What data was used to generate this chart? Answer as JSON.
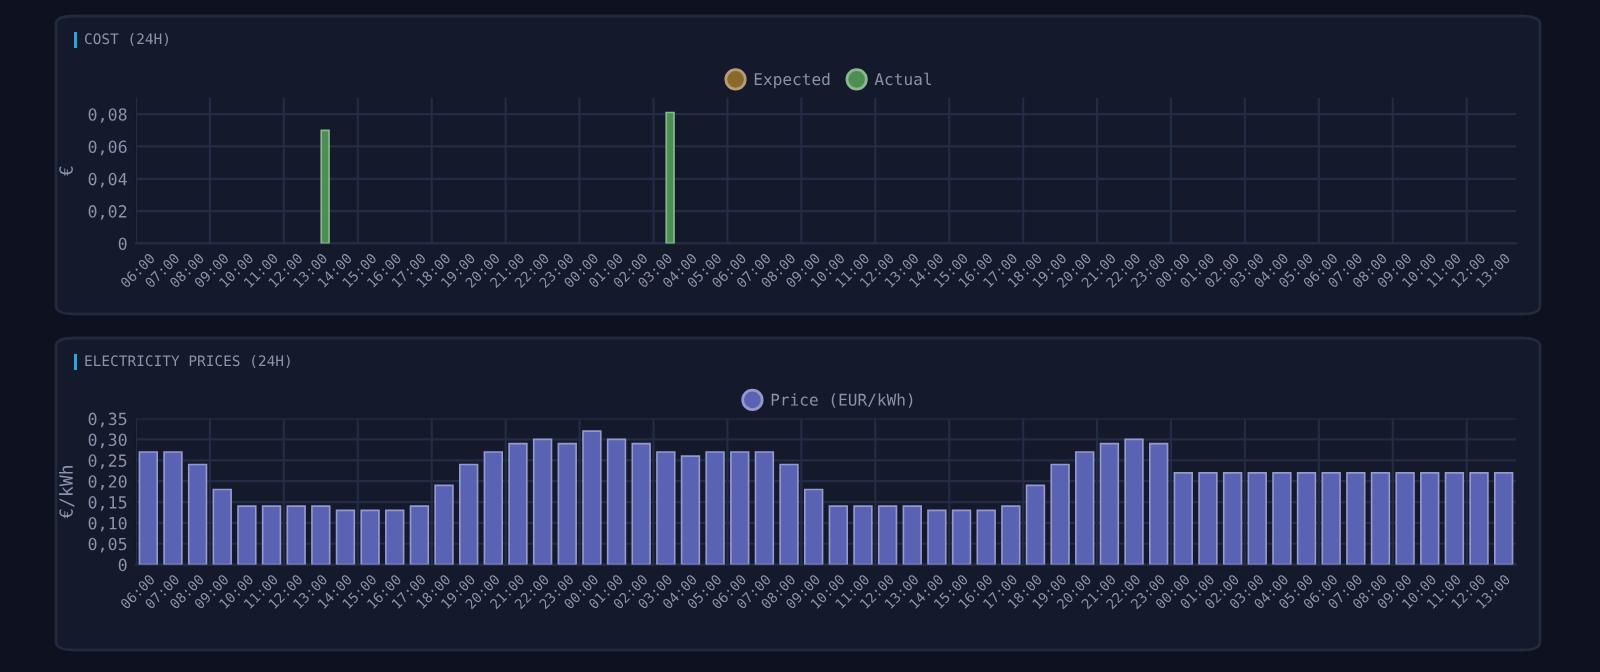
{
  "chart_data": [
    {
      "type": "bar",
      "title": "COST (24H)",
      "ylabel": "€",
      "legend": "top",
      "grid": true,
      "categories": [
        "06:00",
        "07:00",
        "08:00",
        "09:00",
        "10:00",
        "11:00",
        "12:00",
        "13:00",
        "14:00",
        "15:00",
        "16:00",
        "17:00",
        "18:00",
        "19:00",
        "20:00",
        "21:00",
        "22:00",
        "23:00",
        "00:00",
        "01:00",
        "02:00",
        "03:00",
        "04:00",
        "05:00",
        "06:00",
        "07:00",
        "08:00",
        "09:00",
        "10:00",
        "11:00",
        "12:00",
        "13:00",
        "14:00",
        "15:00",
        "16:00",
        "17:00",
        "18:00",
        "19:00",
        "20:00",
        "21:00",
        "22:00",
        "23:00",
        "00:00",
        "01:00",
        "02:00",
        "03:00",
        "04:00",
        "05:00",
        "06:00",
        "07:00",
        "08:00",
        "09:00",
        "10:00",
        "11:00",
        "12:00",
        "13:00"
      ],
      "ylim": [
        0,
        0.09
      ],
      "yticks": [
        0,
        {
          "value": 0.02,
          "label": "0,02"
        },
        {
          "value": 0.04,
          "label": "0,04"
        },
        {
          "value": 0.06,
          "label": "0,06"
        },
        {
          "value": 0.08,
          "label": "0,08"
        }
      ],
      "series": [
        {
          "name": "Expected",
          "color": "#8a6a2a",
          "values": [
            null,
            null,
            null,
            null,
            null,
            null,
            null,
            null,
            null,
            null,
            null,
            null,
            null,
            null,
            null,
            null,
            null,
            null,
            null,
            null,
            null,
            null,
            null,
            null,
            null,
            null,
            null,
            null,
            null,
            null,
            null,
            null,
            null,
            null,
            null,
            null,
            null,
            null,
            null,
            null,
            null,
            null,
            null,
            null,
            null,
            null,
            null,
            null,
            null,
            null,
            null,
            null,
            null,
            null,
            null,
            null
          ]
        },
        {
          "name": "Actual",
          "color": "#4c8f52",
          "values": [
            null,
            null,
            null,
            null,
            null,
            null,
            null,
            0.07,
            null,
            null,
            null,
            null,
            null,
            null,
            null,
            null,
            null,
            null,
            null,
            null,
            null,
            0.081,
            null,
            null,
            null,
            null,
            null,
            null,
            null,
            null,
            null,
            null,
            null,
            null,
            null,
            null,
            null,
            null,
            null,
            null,
            null,
            null,
            null,
            null,
            null,
            null,
            null,
            null,
            null,
            null,
            null,
            null,
            null,
            null,
            null,
            null
          ]
        }
      ]
    },
    {
      "type": "bar",
      "title": "ELECTRICITY PRICES (24H)",
      "ylabel": "€/kWh",
      "legend": "top",
      "grid": true,
      "categories": [
        "06:00",
        "07:00",
        "08:00",
        "09:00",
        "10:00",
        "11:00",
        "12:00",
        "13:00",
        "14:00",
        "15:00",
        "16:00",
        "17:00",
        "18:00",
        "19:00",
        "20:00",
        "21:00",
        "22:00",
        "23:00",
        "00:00",
        "01:00",
        "02:00",
        "03:00",
        "04:00",
        "05:00",
        "06:00",
        "07:00",
        "08:00",
        "09:00",
        "10:00",
        "11:00",
        "12:00",
        "13:00",
        "14:00",
        "15:00",
        "16:00",
        "17:00",
        "18:00",
        "19:00",
        "20:00",
        "21:00",
        "22:00",
        "23:00",
        "00:00",
        "01:00",
        "02:00",
        "03:00",
        "04:00",
        "05:00",
        "06:00",
        "07:00",
        "08:00",
        "09:00",
        "10:00",
        "11:00",
        "12:00",
        "13:00"
      ],
      "ylim": [
        0,
        0.35
      ],
      "yticks": [
        0,
        {
          "value": 0.05,
          "label": "0,05"
        },
        {
          "value": 0.1,
          "label": "0,10"
        },
        {
          "value": 0.15,
          "label": "0,15"
        },
        {
          "value": 0.2,
          "label": "0,20"
        },
        {
          "value": 0.25,
          "label": "0,25"
        },
        {
          "value": 0.3,
          "label": "0,30"
        },
        {
          "value": 0.35,
          "label": "0,35"
        }
      ],
      "series": [
        {
          "name": "Price (EUR/kWh)",
          "color": "#5a62b4",
          "values": [
            0.27,
            0.27,
            0.24,
            0.18,
            0.14,
            0.14,
            0.14,
            0.14,
            0.13,
            0.13,
            0.13,
            0.14,
            0.19,
            0.24,
            0.27,
            0.29,
            0.3,
            0.29,
            0.32,
            0.3,
            0.29,
            0.27,
            0.26,
            0.27,
            0.27,
            0.27,
            0.24,
            0.18,
            0.14,
            0.14,
            0.14,
            0.14,
            0.13,
            0.13,
            0.13,
            0.14,
            0.19,
            0.24,
            0.27,
            0.29,
            0.3,
            0.29,
            0.22,
            0.22,
            0.22,
            0.22,
            0.22,
            0.22,
            0.22,
            0.22,
            0.22,
            0.22,
            0.22,
            0.22,
            0.22,
            0.22
          ]
        }
      ]
    }
  ]
}
